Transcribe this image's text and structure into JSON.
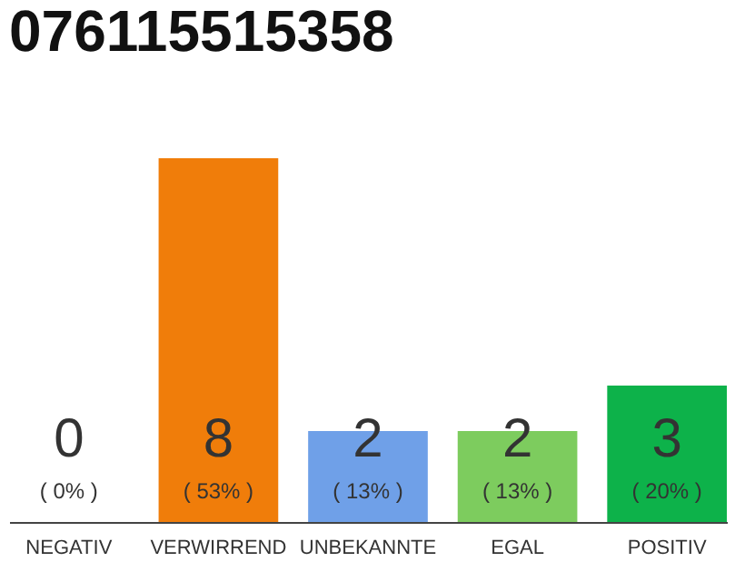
{
  "chart_data": {
    "type": "bar",
    "title": "076115515358",
    "categories": [
      "NEGATIV",
      "VERWIRREND",
      "UNBEKANNTE",
      "EGAL",
      "POSITIV"
    ],
    "values": [
      0,
      8,
      2,
      2,
      3
    ],
    "colors": [
      "#9e9e9e",
      "#f07d0a",
      "#6fa0e8",
      "#7dcc5e",
      "#0db24a"
    ],
    "data_labels": true,
    "annotations": [
      {
        "text": "( 0% )",
        "x": "NEGATIV",
        "y": 0
      },
      {
        "text": "( 53% )",
        "x": "VERWIRREND",
        "y": 0
      },
      {
        "text": "( 13% )",
        "x": "UNBEKANNTE",
        "y": 0
      },
      {
        "text": "( 13% )",
        "x": "EGAL",
        "y": 0
      },
      {
        "text": "( 20% )",
        "x": "POSITIV",
        "y": 0
      }
    ]
  }
}
